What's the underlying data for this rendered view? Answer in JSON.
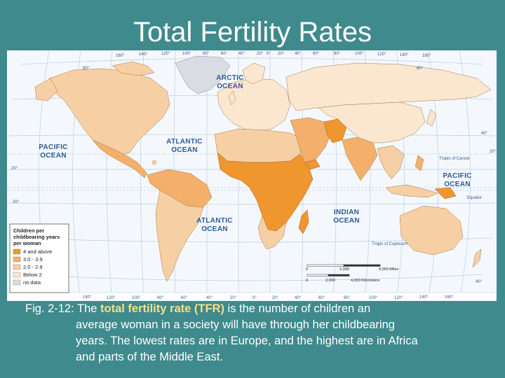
{
  "title": "Total Fertility Rates",
  "colors": {
    "background": "#3f8a8c",
    "ocean": "#f4f8fc",
    "grid": "#b8cde6",
    "tfr_4_and_above": "#f0962e",
    "tfr_3_0_3_9": "#f4b06a",
    "tfr_2_0_2_9": "#f7cfa4",
    "tfr_below_2": "#fbe6d0",
    "no_data": "#d9dde3"
  },
  "oceans": {
    "arctic_1": "ARCTIC",
    "arctic_2": "OCEAN",
    "pacific_w_1": "PACIFIC",
    "pacific_w_2": "OCEAN",
    "atlantic_n_1": "ATLANTIC",
    "atlantic_n_2": "OCEAN",
    "atlantic_s_1": "ATLANTIC",
    "atlantic_s_2": "OCEAN",
    "indian_1": "INDIAN",
    "indian_2": "OCEAN",
    "pacific_e_1": "PACIFIC",
    "pacific_e_2": "OCEAN"
  },
  "map_lines": {
    "tropic_cancer": "Tropic of Cancer",
    "equator": "Equator",
    "tropic_capricorn": "Tropic of Capricorn"
  },
  "top_longitudes": [
    "160°",
    "140°",
    "120°",
    "100°",
    "80°",
    "60°",
    "40°",
    "20°",
    "0°",
    "20°",
    "40°",
    "60°",
    "80°",
    "100°",
    "120°",
    "140°",
    "160°"
  ],
  "bottom_longitudes": [
    "140°",
    "120°",
    "100°",
    "80°",
    "60°",
    "40°",
    "20°",
    "0°",
    "20°",
    "40°",
    "60°",
    "80°",
    "100°",
    "120°",
    "140°",
    "160°"
  ],
  "latitudes": {
    "n80": "80°",
    "n40": "40°",
    "n20": "20°",
    "s20": "20°",
    "s40": "40°"
  },
  "legend": {
    "title_1": "Children per",
    "title_2": "childbearing years",
    "title_3": "per woman",
    "items": [
      "4 and above",
      "3.0 - 3.9",
      "2.0 - 2.9",
      "Below 2",
      "no data"
    ]
  },
  "scale": {
    "miles_start": "0",
    "miles_mid": "2,000",
    "miles_end": "4,000 Miles",
    "km_start": "0",
    "km_mid": "2,000",
    "km_end": "4,000 Kilometers"
  },
  "caption": {
    "prefix": "Fig. 2-12: The ",
    "highlight": "total fertility rate (TFR)",
    "line1_rest": " is the number of children an",
    "line2": "average woman in a society will have through her childbearing",
    "line3": "years. The lowest rates are in Europe, and the highest are in Africa",
    "line4": "and parts of the Middle East."
  }
}
